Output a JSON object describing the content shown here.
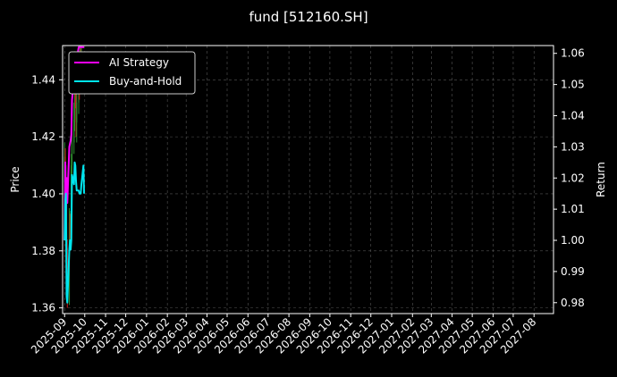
{
  "chart_data": {
    "type": "line",
    "title": "fund [512160.SH]",
    "ylabel_left": "Price",
    "ylabel_right": "Return",
    "xlabel": "",
    "x_ticks": [
      "2025-09",
      "2025-10",
      "2025-11",
      "2025-12",
      "2026-01",
      "2026-02",
      "2026-03",
      "2026-04",
      "2026-05",
      "2026-06",
      "2026-07",
      "2026-08",
      "2026-09",
      "2026-10",
      "2026-11",
      "2026-12",
      "2027-01",
      "2027-02",
      "2027-03",
      "2027-04",
      "2027-05",
      "2027-06",
      "2027-07",
      "2027-08"
    ],
    "y_left_ticks": [
      "1.36",
      "1.38",
      "1.40",
      "1.42",
      "1.44"
    ],
    "y_right_ticks": [
      "0.98",
      "0.99",
      "1.00",
      "1.01",
      "1.02",
      "1.03",
      "1.04",
      "1.05",
      "1.06"
    ],
    "ylim_left": [
      1.358,
      1.452
    ],
    "ylim_right": [
      0.9765,
      1.0625
    ],
    "x_start": "2025-08-29",
    "x_end": "2027-08-30",
    "grid": true,
    "legend_position": "top-left",
    "colors": {
      "ai_strategy": "#ff00ff",
      "buy_and_hold": "#00e5ee",
      "up_candle": "#2e8b2e",
      "down_candle": "#c81e1e",
      "background": "#000000",
      "grid": "#555555"
    },
    "series": [
      {
        "name": "AI Strategy",
        "axis": "right",
        "x": [
          "2025-09-01",
          "2025-09-02",
          "2025-09-03",
          "2025-09-04",
          "2025-09-05",
          "2025-09-08",
          "2025-09-09",
          "2025-09-10",
          "2025-09-11",
          "2025-09-12",
          "2025-09-15",
          "2025-09-16",
          "2025-09-17",
          "2025-09-18",
          "2025-09-19",
          "2025-09-22",
          "2025-09-23",
          "2025-09-24",
          "2025-09-25",
          "2025-09-26",
          "2025-09-29",
          "2025-09-30"
        ],
        "values": [
          1.0,
          1.025,
          1.008,
          1.02,
          1.012,
          1.03,
          1.031,
          1.032,
          1.034,
          1.045,
          1.052,
          1.05,
          1.055,
          1.06,
          1.058,
          1.062,
          1.062,
          1.062,
          1.062,
          1.062,
          1.062,
          1.062
        ]
      },
      {
        "name": "Buy-and-Hold",
        "axis": "right",
        "x": [
          "2025-09-01",
          "2025-09-02",
          "2025-09-03",
          "2025-09-04",
          "2025-09-05",
          "2025-09-08",
          "2025-09-09",
          "2025-09-10",
          "2025-09-11",
          "2025-09-12",
          "2025-09-15",
          "2025-09-16",
          "2025-09-17",
          "2025-09-18",
          "2025-09-19",
          "2025-09-22",
          "2025-09-23",
          "2025-09-24",
          "2025-09-25",
          "2025-09-26",
          "2025-09-29",
          "2025-09-30"
        ],
        "values": [
          1.0,
          1.013,
          1.015,
          0.982,
          0.98,
          0.997,
          1.0,
          0.997,
          1.0,
          1.021,
          1.018,
          1.025,
          1.024,
          1.019,
          1.016,
          1.016,
          1.015,
          1.015,
          1.015,
          1.018,
          1.024,
          1.015
        ]
      }
    ],
    "candles": [
      {
        "x": "2025-09-01",
        "open": 1.404,
        "close": 1.413,
        "high": 1.418,
        "low": 1.399
      },
      {
        "x": "2025-09-02",
        "open": 1.413,
        "close": 1.398,
        "high": 1.416,
        "low": 1.393
      },
      {
        "x": "2025-09-03",
        "open": 1.398,
        "close": 1.402,
        "high": 1.41,
        "low": 1.396
      },
      {
        "x": "2025-09-04",
        "open": 1.402,
        "close": 1.381,
        "high": 1.404,
        "low": 1.378
      },
      {
        "x": "2025-09-05",
        "open": 1.381,
        "close": 1.362,
        "high": 1.384,
        "low": 1.36
      },
      {
        "x": "2025-09-08",
        "open": 1.362,
        "close": 1.39,
        "high": 1.395,
        "low": 1.361
      },
      {
        "x": "2025-09-09",
        "open": 1.39,
        "close": 1.384,
        "high": 1.393,
        "low": 1.38
      },
      {
        "x": "2025-09-10",
        "open": 1.384,
        "close": 1.39,
        "high": 1.394,
        "low": 1.382
      },
      {
        "x": "2025-09-11",
        "open": 1.39,
        "close": 1.41,
        "high": 1.414,
        "low": 1.388
      },
      {
        "x": "2025-09-12",
        "open": 1.41,
        "close": 1.418,
        "high": 1.424,
        "low": 1.407
      },
      {
        "x": "2025-09-15",
        "open": 1.418,
        "close": 1.426,
        "high": 1.432,
        "low": 1.414
      },
      {
        "x": "2025-09-16",
        "open": 1.426,
        "close": 1.444,
        "high": 1.45,
        "low": 1.422
      },
      {
        "x": "2025-09-17",
        "open": 1.444,
        "close": 1.436,
        "high": 1.448,
        "low": 1.43
      },
      {
        "x": "2025-09-18",
        "open": 1.436,
        "close": 1.425,
        "high": 1.44,
        "low": 1.42
      },
      {
        "x": "2025-09-19",
        "open": 1.425,
        "close": 1.432,
        "high": 1.437,
        "low": 1.418
      },
      {
        "x": "2025-09-22",
        "open": 1.432,
        "close": 1.445,
        "high": 1.452,
        "low": 1.428
      },
      {
        "x": "2025-09-23",
        "open": 1.445,
        "close": 1.44,
        "high": 1.45,
        "low": 1.433
      },
      {
        "x": "2025-09-24",
        "open": 1.44,
        "close": 1.447,
        "high": 1.452,
        "low": 1.436
      },
      {
        "x": "2025-09-25",
        "open": 1.447,
        "close": 1.442,
        "high": 1.451,
        "low": 1.437
      },
      {
        "x": "2025-09-26",
        "open": 1.442,
        "close": 1.449,
        "high": 1.452,
        "low": 1.438
      }
    ]
  }
}
